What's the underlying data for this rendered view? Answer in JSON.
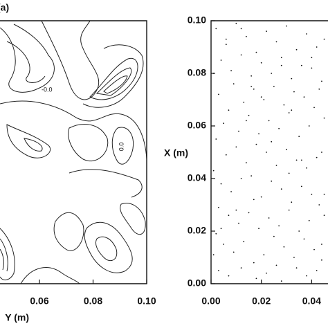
{
  "chart_data": [
    {
      "type": "contour",
      "panel_label": "(a)",
      "xlabel": "Y (m)",
      "xlim": [
        0.04,
        0.1
      ],
      "xticks": [
        {
          "value": 0.06,
          "label": "0.06"
        },
        {
          "value": 0.08,
          "label": "0.08"
        },
        {
          "value": 0.1,
          "label": "0.10"
        }
      ],
      "contour_labels": [
        "-0.0",
        "0.0"
      ]
    },
    {
      "type": "scatter",
      "ylabel": "X (m)",
      "xlim": [
        0,
        0.0465
      ],
      "ylim": [
        0,
        0.1
      ],
      "xticks": [
        {
          "value": 0,
          "label": "0.00"
        },
        {
          "value": 0.02,
          "label": "0.02"
        },
        {
          "value": 0.04,
          "label": "0.04"
        }
      ],
      "yticks": [
        {
          "value": 0,
          "label": "0.00"
        },
        {
          "value": 0.02,
          "label": "0.02"
        },
        {
          "value": 0.04,
          "label": "0.04"
        },
        {
          "value": 0.06,
          "label": "0.06"
        },
        {
          "value": 0.08,
          "label": "0.08"
        },
        {
          "value": 0.1,
          "label": "0.10"
        }
      ],
      "color": "#111111",
      "x": [
        0.002,
        0.006,
        0.01,
        0.014,
        0.018,
        0.022,
        0.026,
        0.03,
        0.034,
        0.038,
        0.042,
        0.045,
        0.004,
        0.008,
        0.012,
        0.016,
        0.02,
        0.024,
        0.028,
        0.032,
        0.036,
        0.04,
        0.044,
        0.001,
        0.003,
        0.009,
        0.013,
        0.017,
        0.021,
        0.025,
        0.029,
        0.033,
        0.037,
        0.041,
        0.043,
        0.007,
        0.005,
        0.011,
        0.015,
        0.019,
        0.023,
        0.027,
        0.031,
        0.035,
        0.039,
        0.002,
        0.045,
        0.018,
        0.006,
        0.01,
        0.014,
        0.022,
        0.026,
        0.03,
        0.034,
        0.038,
        0.042,
        0.001,
        0.016,
        0.044,
        0.004,
        0.008,
        0.012,
        0.02,
        0.024,
        0.028,
        0.032,
        0.036,
        0.04,
        0.043,
        0.017,
        0.003,
        0.007,
        0.011,
        0.015,
        0.019,
        0.023,
        0.027,
        0.031,
        0.035,
        0.039,
        0.045,
        0.002,
        0.025,
        0.005,
        0.009,
        0.013,
        0.021,
        0.029,
        0.033,
        0.037,
        0.041,
        0.044,
        0.017,
        0.001,
        0.026,
        0.003,
        0.007,
        0.012,
        0.018,
        0.022,
        0.028,
        0.034,
        0.038,
        0.042,
        0.014,
        0.031,
        0.045,
        0.006,
        0.016,
        0.024,
        0.032,
        0.04,
        0.01,
        0.02,
        0.036,
        0.028,
        0.004,
        0.044,
        0.012
      ],
      "values": [
        0.097,
        0.091,
        0.099,
        0.094,
        0.088,
        0.096,
        0.092,
        0.098,
        0.089,
        0.095,
        0.09,
        0.093,
        0.085,
        0.081,
        0.087,
        0.079,
        0.084,
        0.08,
        0.086,
        0.078,
        0.083,
        0.082,
        0.077,
        0.08,
        0.072,
        0.076,
        0.069,
        0.074,
        0.07,
        0.075,
        0.068,
        0.073,
        0.071,
        0.067,
        0.074,
        0.066,
        0.061,
        0.058,
        0.064,
        0.057,
        0.062,
        0.059,
        0.065,
        0.056,
        0.06,
        0.055,
        0.063,
        0.053,
        0.049,
        0.052,
        0.046,
        0.05,
        0.045,
        0.051,
        0.047,
        0.044,
        0.048,
        0.043,
        0.041,
        0.05,
        0.038,
        0.035,
        0.04,
        0.033,
        0.039,
        0.036,
        0.031,
        0.037,
        0.034,
        0.03,
        0.032,
        0.029,
        0.026,
        0.023,
        0.027,
        0.021,
        0.025,
        0.022,
        0.028,
        0.02,
        0.024,
        0.026,
        0.019,
        0.018,
        0.015,
        0.012,
        0.016,
        0.011,
        0.014,
        0.01,
        0.017,
        0.013,
        0.009,
        0.008,
        0.011,
        0.007,
        0.005,
        0.003,
        0.006,
        0.002,
        0.004,
        0.001,
        0.006,
        0.003,
        0.005,
        0.062,
        0.042,
        0.034,
        0.093,
        0.075,
        0.054,
        0.066,
        0.086,
        0.028,
        0.071,
        0.047,
        0.083,
        0.021,
        0.015,
        0.097
      ]
    }
  ]
}
